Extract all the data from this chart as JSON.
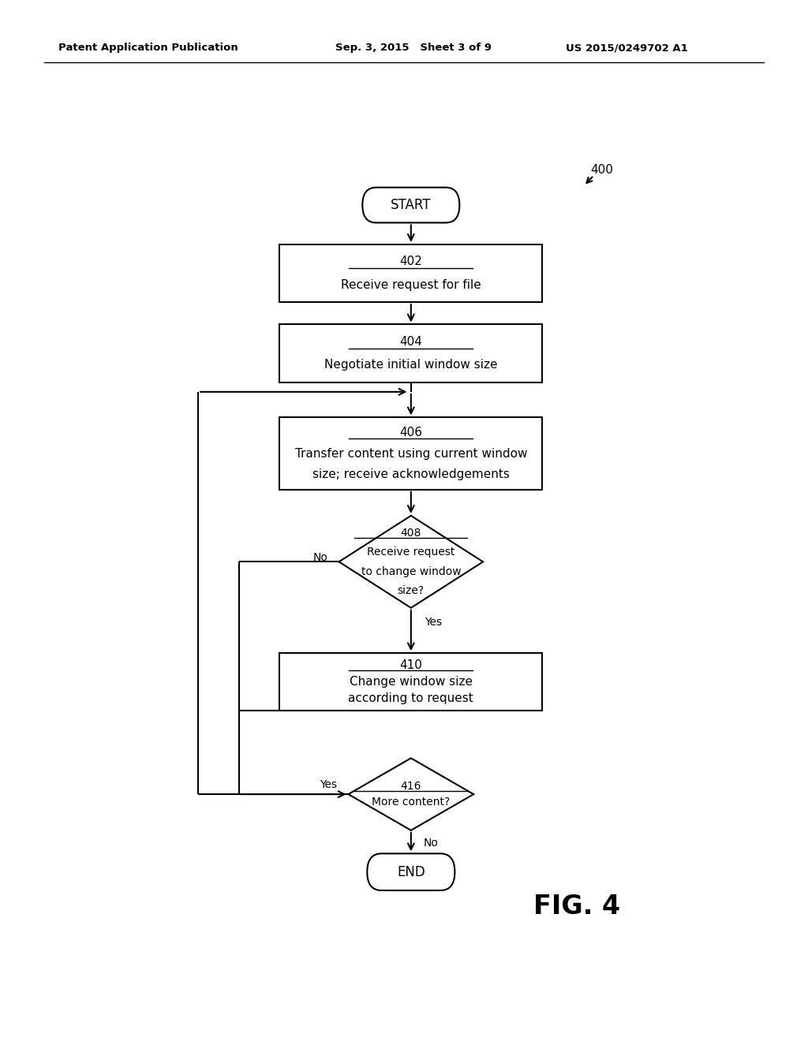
{
  "bg_color": "#ffffff",
  "header_left": "Patent Application Publication",
  "header_mid": "Sep. 3, 2015   Sheet 3 of 9",
  "header_right": "US 2015/0249702 A1",
  "fig_label": "FIG. 4",
  "ref_number": "400",
  "colors": {
    "box_fill": "#ffffff",
    "box_edge": "#000000",
    "text": "#000000"
  }
}
